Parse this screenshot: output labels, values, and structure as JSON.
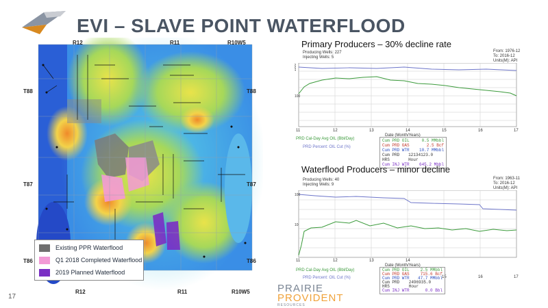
{
  "title": "EVI – SLAVE POINT WATERFLOOD",
  "page_number": "17",
  "brand": {
    "line1": "PRAIRIE",
    "line2": "PROVIDENT",
    "line3": "RESOURCES",
    "color1": "#7b8694",
    "color2": "#f0a23a"
  },
  "map": {
    "ranges_top": [
      "R12",
      "R11",
      "R10W5"
    ],
    "ranges_bottom": [
      "R12",
      "R11",
      "R10W5"
    ],
    "townships_left": [
      "T88",
      "T87",
      "T86"
    ],
    "townships_right": [
      "T88",
      "T87",
      "T86"
    ]
  },
  "legend": [
    {
      "label": "Existing PPR Waterflood",
      "color": "#6f6f6f"
    },
    {
      "label": "Q1 2018 Completed Waterflood",
      "color": "#f29ad6"
    },
    {
      "label": "2019 Planned Waterflood",
      "color": "#7a2fc4"
    }
  ],
  "primary": {
    "heading": "Primary Producers – 30% decline rate",
    "info_left": [
      "Producing Wells: 227",
      "Injecting Wells: 5"
    ],
    "info_right": [
      "From: 1976-12",
      "To: 2016-12",
      "Units(M): API"
    ],
    "x_axis_title": "Date (Month/Years)",
    "x_ticks": [
      "11",
      "12",
      "13",
      "14",
      "15",
      "16",
      "17"
    ],
    "legend_top": "PRD Cal-Day Avg OIL (Bbl/Day)",
    "legend_bottom": "PRD Percent: OIL Cut (%)",
    "stats": [
      [
        "Cum PRD OIL",
        "0.5",
        "MMbbl"
      ],
      [
        "Cum PRD GAS",
        "2.5",
        "Bcf"
      ],
      [
        "Cum PRD WTR",
        "10.7",
        "MMbbl"
      ],
      [
        "Cum PRD HRS",
        "12134123.0",
        "Hour"
      ],
      [
        "Cum INJ WTR",
        "645.2",
        "Mbbl"
      ]
    ]
  },
  "waterflood": {
    "heading": "Waterflood Producers – minor decline",
    "info_left": [
      "Producing Wells: 40",
      "Injecting Wells: 9"
    ],
    "info_right": [
      "From: 1963-11",
      "To: 2016-12",
      "Units(M): API"
    ],
    "x_axis_title": "Date (Month/Years)",
    "x_ticks": [
      "11",
      "12",
      "13",
      "14",
      "15",
      "16",
      "17"
    ],
    "legend_top": "PRD Cal-Day Avg OIL (Bbl/Day)",
    "legend_bottom": "PRD Percent: OIL Cut (%)",
    "stats": [
      [
        "Cum PRD OIL",
        "2.5",
        "MMbbl"
      ],
      [
        "Cum PRD GAS",
        "715.6",
        "Bcf"
      ],
      [
        "Cum PRD WTR",
        "47.7",
        "MMbbl"
      ],
      [
        "Cum PRD HRS",
        "2496935.0",
        "Hour"
      ],
      [
        "Cum INJ WTR",
        "0.0",
        "Bbl"
      ]
    ]
  },
  "colors": {
    "title": "#4a5563",
    "oil_series": "#3a9a3a",
    "cut_series": "#6c74c9"
  }
}
